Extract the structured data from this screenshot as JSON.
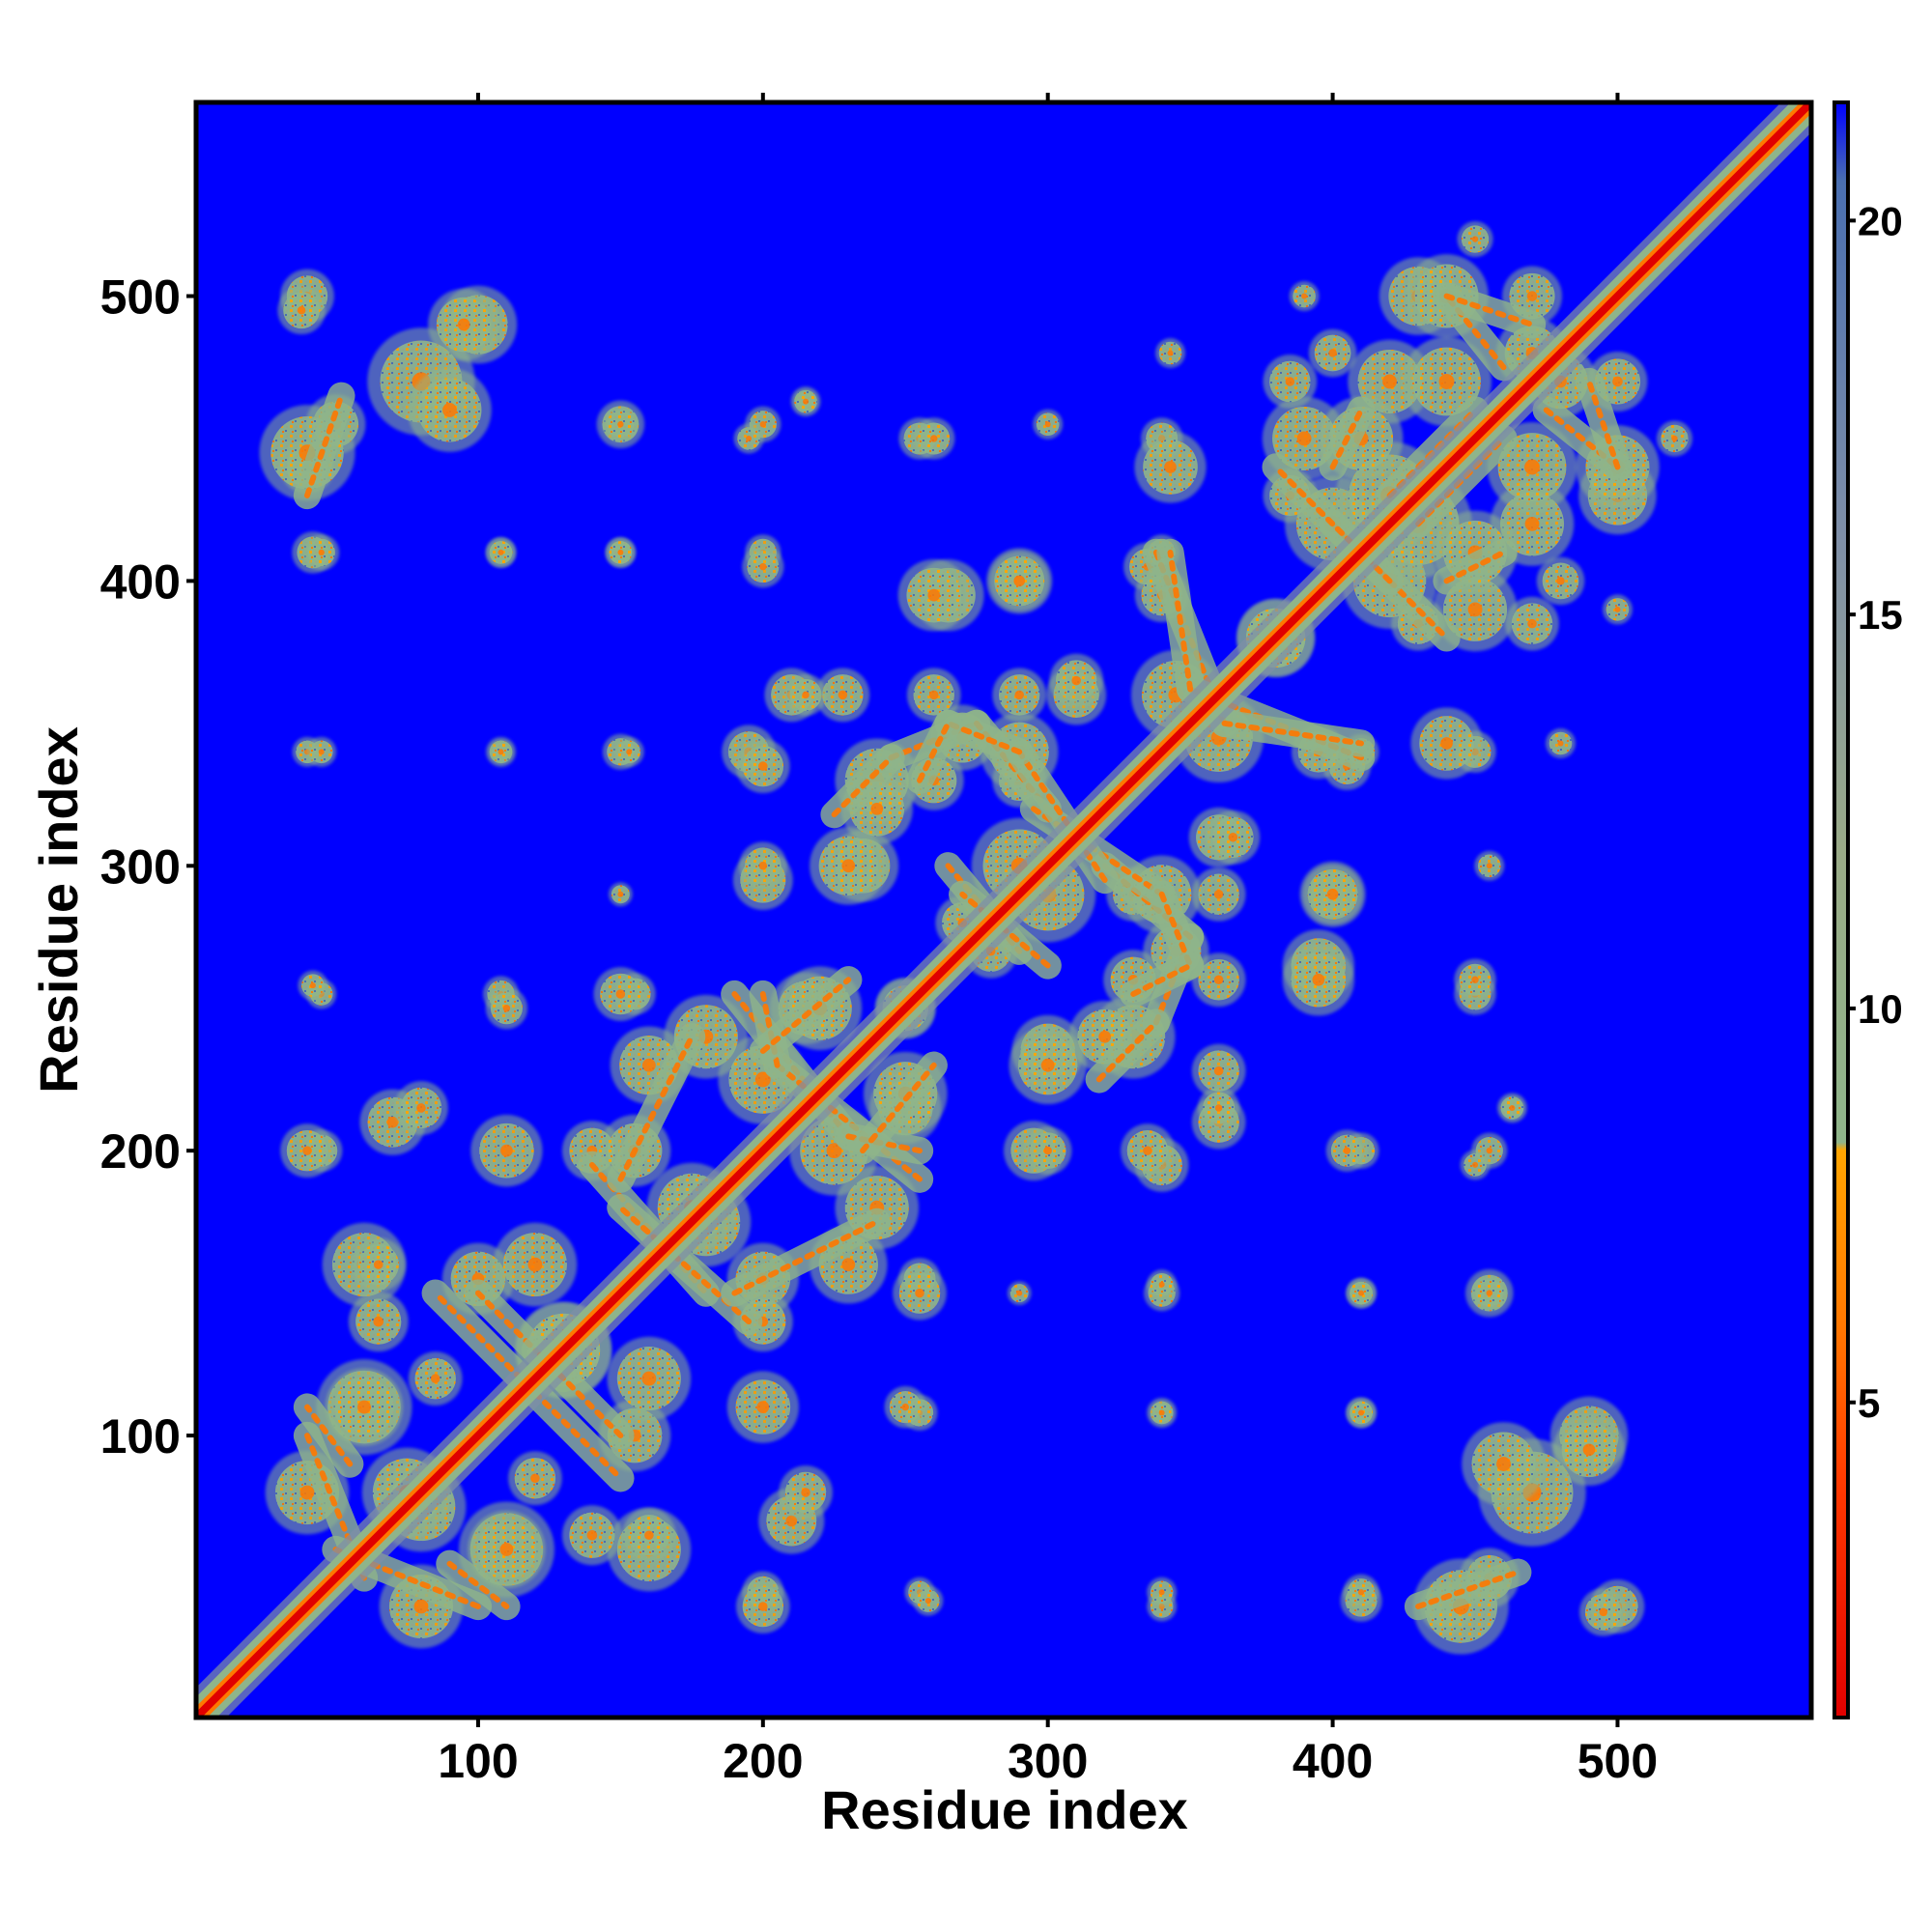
{
  "chart_data": {
    "type": "heatmap",
    "title": "",
    "xlabel": "Residue index",
    "ylabel": "Residue index",
    "xlim": [
      1,
      568
    ],
    "ylim": [
      1,
      568
    ],
    "x_ticks": [
      100,
      200,
      300,
      400,
      500
    ],
    "y_ticks": [
      100,
      200,
      300,
      400,
      500
    ],
    "colorbar": {
      "ticks": [
        5,
        10,
        15,
        20
      ],
      "range": [
        1,
        21.5
      ],
      "stops": [
        {
          "value": 1,
          "color": "#e00000"
        },
        {
          "value": 4,
          "color": "#ff3a00"
        },
        {
          "value": 6,
          "color": "#ff7800"
        },
        {
          "value": 8.2,
          "color": "#ffa500"
        },
        {
          "value": 8.3,
          "color": "#8fb58a"
        },
        {
          "value": 12,
          "color": "#9aab88"
        },
        {
          "value": 16,
          "color": "#7f8fa8"
        },
        {
          "value": 20.5,
          "color": "#4a6fb0"
        },
        {
          "value": 21.5,
          "color": "#0000ff"
        }
      ]
    },
    "background_color": "#0000ff",
    "diagonal_color": "#e00000",
    "contact_clusters": [
      {
        "x": 40,
        "y": 500,
        "r": 9
      },
      {
        "x": 100,
        "y": 490,
        "r": 13
      },
      {
        "x": 80,
        "y": 470,
        "r": 18
      },
      {
        "x": 50,
        "y": 455,
        "r": 10
      },
      {
        "x": 40,
        "y": 440,
        "r": 9
      },
      {
        "x": 42,
        "y": 410,
        "r": 7
      },
      {
        "x": 108,
        "y": 410,
        "r": 5
      },
      {
        "x": 150,
        "y": 410,
        "r": 5
      },
      {
        "x": 200,
        "y": 410,
        "r": 6
      },
      {
        "x": 150,
        "y": 455,
        "r": 8
      },
      {
        "x": 200,
        "y": 455,
        "r": 6
      },
      {
        "x": 215,
        "y": 463,
        "r": 4
      },
      {
        "x": 255,
        "y": 450,
        "r": 7
      },
      {
        "x": 265,
        "y": 395,
        "r": 12
      },
      {
        "x": 290,
        "y": 400,
        "r": 10
      },
      {
        "x": 210,
        "y": 360,
        "r": 9
      },
      {
        "x": 228,
        "y": 360,
        "r": 9
      },
      {
        "x": 290,
        "y": 360,
        "r": 9
      },
      {
        "x": 310,
        "y": 360,
        "r": 10
      },
      {
        "x": 340,
        "y": 450,
        "r": 7
      },
      {
        "x": 335,
        "y": 405,
        "r": 8
      },
      {
        "x": 40,
        "y": 340,
        "r": 5
      },
      {
        "x": 108,
        "y": 340,
        "r": 5
      },
      {
        "x": 150,
        "y": 340,
        "r": 6
      },
      {
        "x": 195,
        "y": 340,
        "r": 9
      },
      {
        "x": 240,
        "y": 330,
        "r": 14
      },
      {
        "x": 270,
        "y": 345,
        "r": 11
      },
      {
        "x": 290,
        "y": 330,
        "r": 9
      },
      {
        "x": 200,
        "y": 295,
        "r": 10
      },
      {
        "x": 235,
        "y": 300,
        "r": 12
      },
      {
        "x": 150,
        "y": 290,
        "r": 4
      },
      {
        "x": 365,
        "y": 310,
        "r": 9
      },
      {
        "x": 300,
        "y": 290,
        "r": 16
      },
      {
        "x": 340,
        "y": 290,
        "r": 13
      },
      {
        "x": 360,
        "y": 345,
        "r": 15
      },
      {
        "x": 395,
        "y": 340,
        "r": 9
      },
      {
        "x": 410,
        "y": 340,
        "r": 6
      },
      {
        "x": 440,
        "y": 343,
        "r": 12
      },
      {
        "x": 480,
        "y": 343,
        "r": 5
      },
      {
        "x": 400,
        "y": 290,
        "r": 11
      },
      {
        "x": 395,
        "y": 260,
        "r": 12
      },
      {
        "x": 360,
        "y": 260,
        "r": 9
      },
      {
        "x": 450,
        "y": 260,
        "r": 7
      },
      {
        "x": 455,
        "y": 300,
        "r": 5
      },
      {
        "x": 360,
        "y": 215,
        "r": 7
      },
      {
        "x": 335,
        "y": 200,
        "r": 9
      },
      {
        "x": 405,
        "y": 200,
        "r": 7
      },
      {
        "x": 450,
        "y": 195,
        "r": 5
      },
      {
        "x": 463,
        "y": 215,
        "r": 5
      },
      {
        "x": 340,
        "y": 153,
        "r": 5
      },
      {
        "x": 410,
        "y": 150,
        "r": 5
      },
      {
        "x": 455,
        "y": 150,
        "r": 6
      },
      {
        "x": 340,
        "y": 108,
        "r": 4
      },
      {
        "x": 410,
        "y": 108,
        "r": 5
      },
      {
        "x": 460,
        "y": 90,
        "r": 14
      },
      {
        "x": 490,
        "y": 95,
        "r": 12
      },
      {
        "x": 445,
        "y": 40,
        "r": 16
      },
      {
        "x": 495,
        "y": 38,
        "r": 8
      },
      {
        "x": 410,
        "y": 45,
        "r": 6
      },
      {
        "x": 340,
        "y": 45,
        "r": 5
      },
      {
        "x": 255,
        "y": 45,
        "r": 5
      },
      {
        "x": 200,
        "y": 45,
        "r": 7
      },
      {
        "x": 210,
        "y": 70,
        "r": 11
      },
      {
        "x": 255,
        "y": 108,
        "r": 6
      },
      {
        "x": 255,
        "y": 155,
        "r": 7
      },
      {
        "x": 240,
        "y": 180,
        "r": 14
      },
      {
        "x": 250,
        "y": 215,
        "r": 12
      },
      {
        "x": 200,
        "y": 225,
        "r": 15
      },
      {
        "x": 220,
        "y": 250,
        "r": 14
      },
      {
        "x": 250,
        "y": 250,
        "r": 10
      },
      {
        "x": 160,
        "y": 230,
        "r": 13
      },
      {
        "x": 180,
        "y": 175,
        "r": 15
      },
      {
        "x": 200,
        "y": 155,
        "r": 12
      },
      {
        "x": 150,
        "y": 255,
        "r": 9
      },
      {
        "x": 110,
        "y": 250,
        "r": 7
      },
      {
        "x": 42,
        "y": 258,
        "r": 5
      },
      {
        "x": 40,
        "y": 200,
        "r": 9
      },
      {
        "x": 80,
        "y": 215,
        "r": 9
      },
      {
        "x": 110,
        "y": 200,
        "r": 12
      },
      {
        "x": 140,
        "y": 200,
        "r": 10
      },
      {
        "x": 60,
        "y": 160,
        "r": 14
      },
      {
        "x": 100,
        "y": 155,
        "r": 12
      },
      {
        "x": 130,
        "y": 130,
        "r": 16
      },
      {
        "x": 160,
        "y": 120,
        "r": 14
      },
      {
        "x": 60,
        "y": 110,
        "r": 16
      },
      {
        "x": 40,
        "y": 80,
        "r": 14
      },
      {
        "x": 80,
        "y": 75,
        "r": 15
      },
      {
        "x": 110,
        "y": 60,
        "r": 13
      },
      {
        "x": 140,
        "y": 65,
        "r": 10
      },
      {
        "x": 160,
        "y": 65,
        "r": 9
      },
      {
        "x": 120,
        "y": 85,
        "r": 9
      },
      {
        "x": 300,
        "y": 230,
        "r": 13
      },
      {
        "x": 320,
        "y": 240,
        "r": 12
      },
      {
        "x": 330,
        "y": 260,
        "r": 10
      },
      {
        "x": 300,
        "y": 200,
        "r": 8
      },
      {
        "x": 280,
        "y": 270,
        "r": 9
      },
      {
        "x": 420,
        "y": 400,
        "r": 16
      },
      {
        "x": 450,
        "y": 390,
        "r": 14
      },
      {
        "x": 430,
        "y": 420,
        "r": 18
      },
      {
        "x": 470,
        "y": 420,
        "r": 14
      },
      {
        "x": 500,
        "y": 430,
        "r": 13
      },
      {
        "x": 410,
        "y": 450,
        "r": 14
      },
      {
        "x": 440,
        "y": 470,
        "r": 15
      },
      {
        "x": 470,
        "y": 480,
        "r": 12
      },
      {
        "x": 440,
        "y": 500,
        "r": 14
      },
      {
        "x": 470,
        "y": 500,
        "r": 10
      },
      {
        "x": 400,
        "y": 480,
        "r": 8
      },
      {
        "x": 385,
        "y": 430,
        "r": 9
      },
      {
        "x": 470,
        "y": 385,
        "r": 9
      },
      {
        "x": 500,
        "y": 390,
        "r": 5
      },
      {
        "x": 520,
        "y": 450,
        "r": 6
      },
      {
        "x": 380,
        "y": 380,
        "r": 13
      }
    ],
    "contact_bands": [
      {
        "x1": 338,
        "y1": 410,
        "x2": 362,
        "y2": 350,
        "w": 4
      },
      {
        "x1": 362,
        "y1": 350,
        "x2": 410,
        "y2": 343,
        "w": 4
      },
      {
        "x1": 245,
        "y1": 338,
        "x2": 275,
        "y2": 350,
        "w": 4
      },
      {
        "x1": 275,
        "y1": 350,
        "x2": 300,
        "y2": 320,
        "w": 4
      },
      {
        "x1": 225,
        "y1": 318,
        "x2": 245,
        "y2": 338,
        "w": 4
      },
      {
        "x1": 265,
        "y1": 300,
        "x2": 290,
        "y2": 270,
        "w": 4
      },
      {
        "x1": 295,
        "y1": 320,
        "x2": 340,
        "y2": 290,
        "w": 4
      },
      {
        "x1": 340,
        "y1": 290,
        "x2": 350,
        "y2": 265,
        "w": 4
      },
      {
        "x1": 330,
        "y1": 255,
        "x2": 350,
        "y2": 265,
        "w": 4
      },
      {
        "x1": 190,
        "y1": 255,
        "x2": 230,
        "y2": 205,
        "w": 4
      },
      {
        "x1": 230,
        "y1": 205,
        "x2": 255,
        "y2": 200,
        "w": 4
      },
      {
        "x1": 200,
        "y1": 235,
        "x2": 230,
        "y2": 260,
        "w": 4
      },
      {
        "x1": 140,
        "y1": 195,
        "x2": 180,
        "y2": 150,
        "w": 4
      },
      {
        "x1": 190,
        "y1": 150,
        "x2": 240,
        "y2": 175,
        "w": 4
      },
      {
        "x1": 100,
        "y1": 150,
        "x2": 130,
        "y2": 120,
        "w": 4
      },
      {
        "x1": 120,
        "y1": 115,
        "x2": 150,
        "y2": 85,
        "w": 4
      },
      {
        "x1": 40,
        "y1": 100,
        "x2": 60,
        "y2": 50,
        "w": 4
      },
      {
        "x1": 90,
        "y1": 55,
        "x2": 110,
        "y2": 40,
        "w": 4
      },
      {
        "x1": 420,
        "y1": 430,
        "x2": 450,
        "y2": 460,
        "w": 4
      },
      {
        "x1": 440,
        "y1": 400,
        "x2": 460,
        "y2": 410,
        "w": 4
      },
      {
        "x1": 475,
        "y1": 460,
        "x2": 500,
        "y2": 440,
        "w": 4
      },
      {
        "x1": 400,
        "y1": 420,
        "x2": 440,
        "y2": 380,
        "w": 4
      },
      {
        "x1": 430,
        "y1": 40,
        "x2": 465,
        "y2": 52,
        "w": 4
      },
      {
        "x1": 440,
        "y1": 500,
        "x2": 470,
        "y2": 490,
        "w": 4
      }
    ]
  }
}
